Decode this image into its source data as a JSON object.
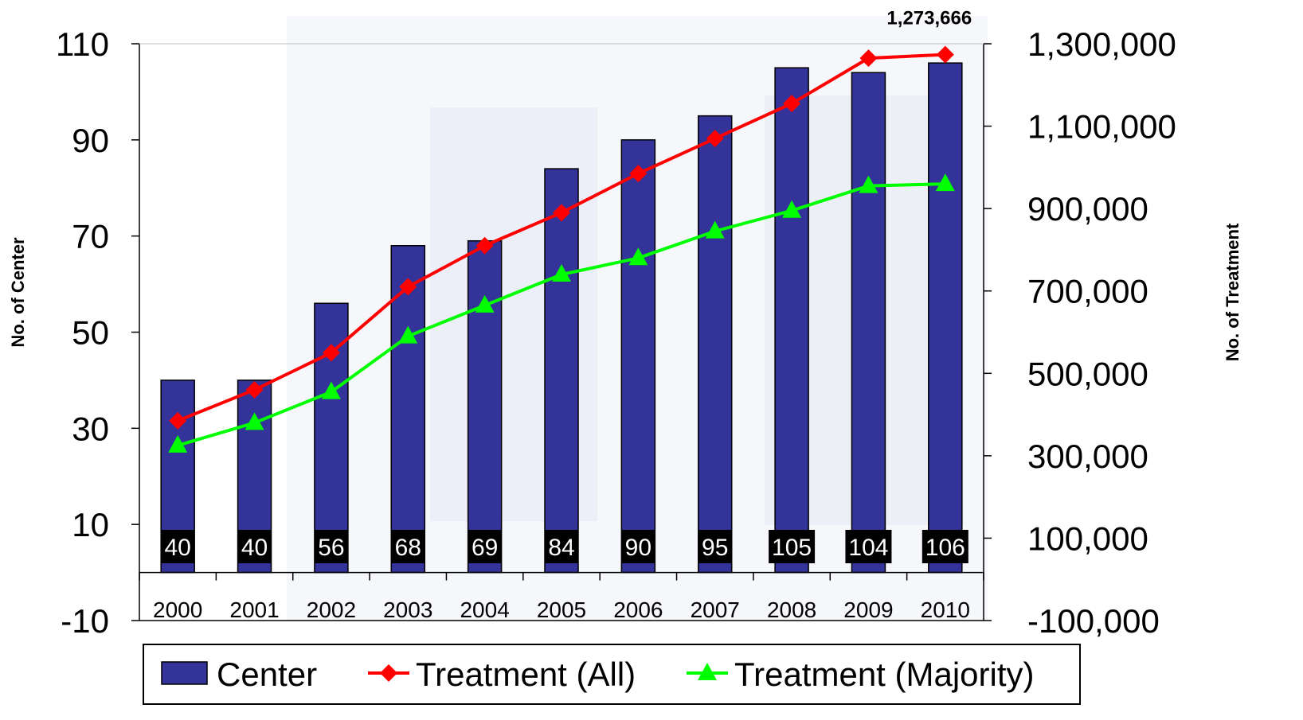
{
  "chart_data": {
    "type": "bar+line",
    "categories": [
      "2000",
      "2001",
      "2002",
      "2003",
      "2004",
      "2005",
      "2006",
      "2007",
      "2008",
      "2009",
      "2010"
    ],
    "series": [
      {
        "name": "Center",
        "type": "bar",
        "axis": "left",
        "values": [
          40,
          40,
          56,
          68,
          69,
          84,
          90,
          95,
          105,
          104,
          106
        ],
        "data_labels": [
          "40",
          "40",
          "56",
          "68",
          "69",
          "84",
          "90",
          "95",
          "105",
          "104",
          "106"
        ],
        "color": "#333399"
      },
      {
        "name": "Treatment (All)",
        "type": "line",
        "axis": "right",
        "marker": "diamond",
        "values": [
          385000,
          460000,
          550000,
          710000,
          810000,
          890000,
          985000,
          1070000,
          1155000,
          1265000,
          1273666
        ],
        "color": "#ff0000"
      },
      {
        "name": "Treatment (Majority)",
        "type": "line",
        "axis": "right",
        "marker": "triangle",
        "values": [
          325000,
          380000,
          455000,
          590000,
          665000,
          740000,
          780000,
          845000,
          895000,
          955000,
          960000
        ],
        "color": "#00ff00"
      }
    ],
    "peak_label": "1,273,666",
    "y_left": {
      "label": "No. of Center",
      "ticks": [
        "110",
        "90",
        "70",
        "50",
        "30",
        "10",
        "-10"
      ],
      "tick_values": [
        110,
        90,
        70,
        50,
        30,
        10,
        -10
      ],
      "range": [
        -10,
        110
      ]
    },
    "y_right": {
      "label": "No. of Treatment",
      "ticks": [
        "1,300,000",
        "1,100,000",
        "900,000",
        "700,000",
        "500,000",
        "300,000",
        "100,000",
        "-100,000"
      ],
      "tick_values": [
        1300000,
        1100000,
        900000,
        700000,
        500000,
        300000,
        100000,
        -100000
      ],
      "range": [
        -100000,
        1300000
      ]
    },
    "xlabel": "",
    "legend_position": "bottom",
    "grid": false
  }
}
